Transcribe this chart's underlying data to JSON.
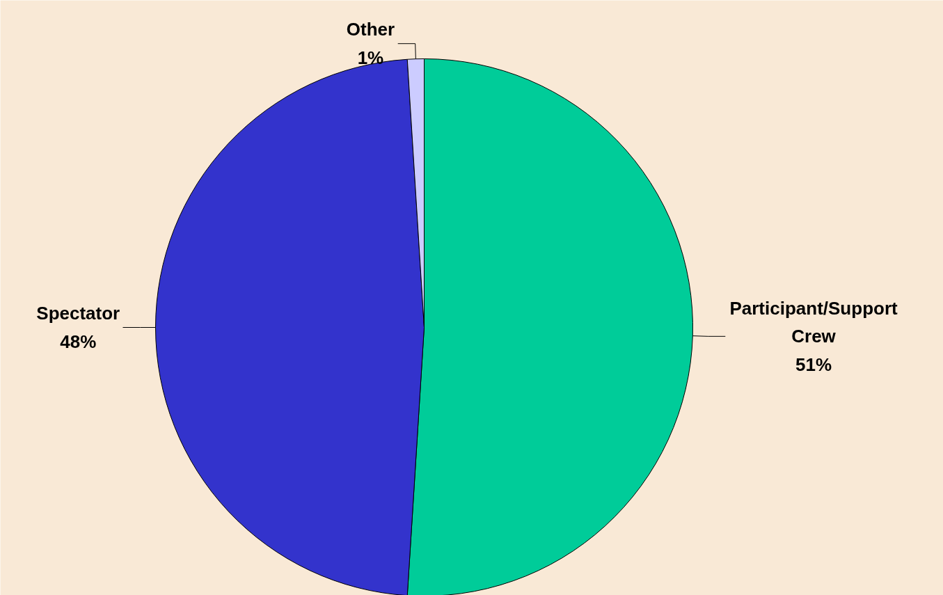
{
  "chart_data": {
    "type": "pie",
    "categories": [
      "Participant/Support Crew",
      "Spectator",
      "Other"
    ],
    "values": [
      51,
      48,
      1
    ],
    "colors": [
      "#00cc99",
      "#3333cc",
      "#ccccff"
    ],
    "value_labels": [
      "51%",
      "48%",
      "1%"
    ]
  }
}
